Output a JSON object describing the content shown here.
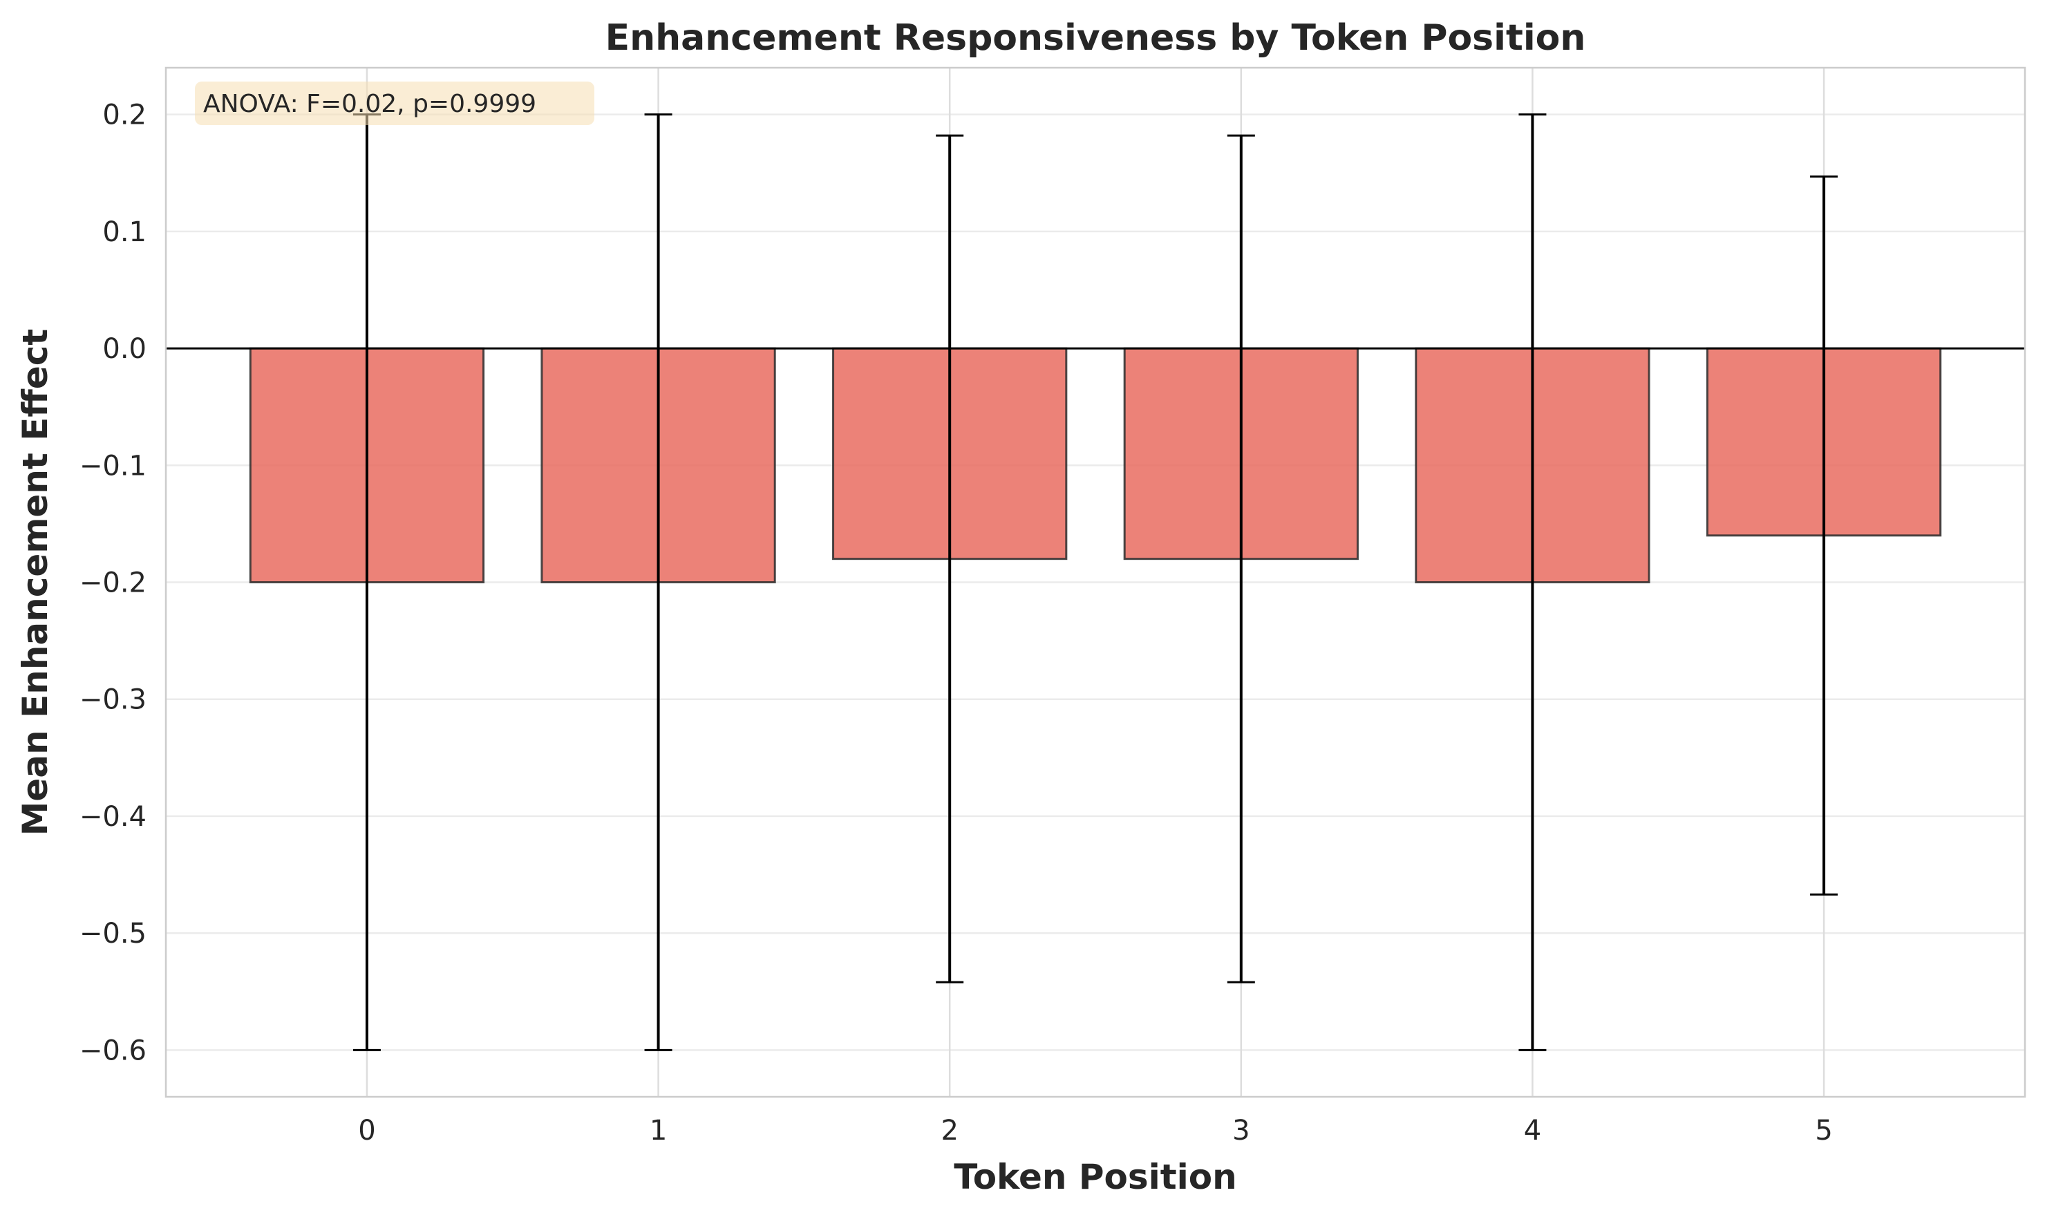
{
  "chart_data": {
    "type": "bar",
    "title": "Enhancement Responsiveness by Token Position",
    "xlabel": "Token Position",
    "ylabel": "Mean Enhancement Effect",
    "categories": [
      "0",
      "1",
      "2",
      "3",
      "4",
      "5"
    ],
    "values": [
      -0.2,
      -0.2,
      -0.18,
      -0.18,
      -0.2,
      -0.16
    ],
    "error_bars": [
      0.4,
      0.4,
      0.362,
      0.362,
      0.4,
      0.307
    ],
    "yticks": [
      0.2,
      0.1,
      0.0,
      -0.1,
      -0.2,
      -0.3,
      -0.4,
      -0.5,
      -0.6
    ],
    "ytick_labels": [
      "0.2",
      "0.1",
      "0.0",
      "−0.1",
      "−0.2",
      "−0.3",
      "−0.4",
      "−0.5",
      "−0.6"
    ],
    "ylim": [
      -0.64,
      0.24
    ],
    "xlim": [
      -0.69,
      5.69
    ],
    "grid": true,
    "bar_color": "#E8675A",
    "annotation": "ANOVA: F=0.02, p=0.9999"
  }
}
